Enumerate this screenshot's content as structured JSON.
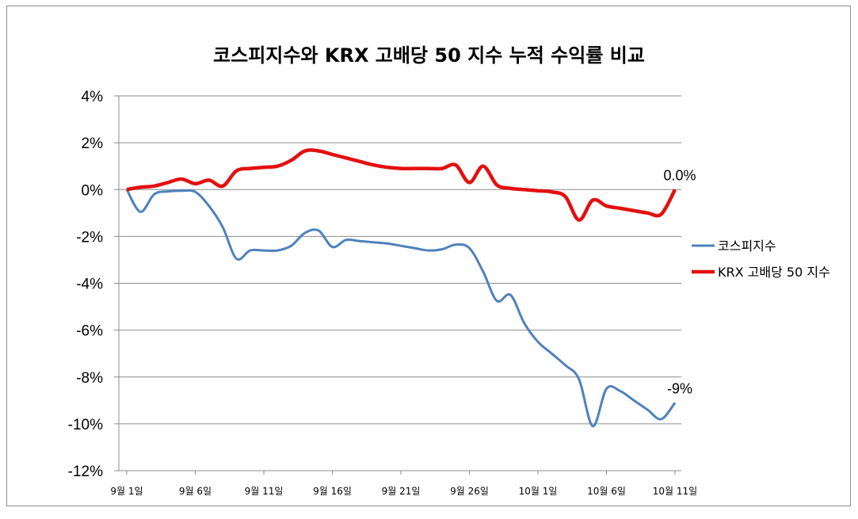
{
  "chart_data": {
    "type": "line",
    "title": "코스피지수와 KRX 고배당 50 지수 누적 수익률 비교",
    "xlabel": "",
    "ylabel": "",
    "ylim": [
      -12,
      4
    ],
    "y_ticks": [
      "4%",
      "2%",
      "0%",
      "-2%",
      "-4%",
      "-6%",
      "-8%",
      "-10%",
      "-12%"
    ],
    "x_tick_labels": [
      "9월 1일",
      "9월 6일",
      "9월 11일",
      "9월 16일",
      "9월 21일",
      "9월 26일",
      "10월 1일",
      "10월 6일",
      "10월 11일"
    ],
    "x_tick_days": [
      0,
      5,
      10,
      15,
      20,
      25,
      30,
      35,
      40
    ],
    "legend_position": "right",
    "grid": "horizontal",
    "series": [
      {
        "name": "코스피지수",
        "color": "#4f81bd",
        "end_label": "-9%",
        "points": [
          [
            0,
            0
          ],
          [
            1,
            -0.95
          ],
          [
            2,
            -0.2
          ],
          [
            3,
            -0.08
          ],
          [
            4,
            -0.05
          ],
          [
            5,
            -0.1
          ],
          [
            6,
            -0.7
          ],
          [
            7,
            -1.6
          ],
          [
            8,
            -2.95
          ],
          [
            9,
            -2.6
          ],
          [
            10,
            -2.6
          ],
          [
            11,
            -2.6
          ],
          [
            12,
            -2.4
          ],
          [
            13,
            -1.85
          ],
          [
            14,
            -1.75
          ],
          [
            15,
            -2.45
          ],
          [
            16,
            -2.15
          ],
          [
            17,
            -2.2
          ],
          [
            18,
            -2.25
          ],
          [
            19,
            -2.3
          ],
          [
            20,
            -2.4
          ],
          [
            21,
            -2.5
          ],
          [
            22,
            -2.6
          ],
          [
            23,
            -2.55
          ],
          [
            24,
            -2.35
          ],
          [
            25,
            -2.5
          ],
          [
            26,
            -3.5
          ],
          [
            27,
            -4.75
          ],
          [
            28,
            -4.5
          ],
          [
            29,
            -5.7
          ],
          [
            30,
            -6.5
          ],
          [
            31,
            -7.0
          ],
          [
            32,
            -7.5
          ],
          [
            33,
            -8.1
          ],
          [
            34,
            -10.1
          ],
          [
            35,
            -8.5
          ],
          [
            36,
            -8.6
          ],
          [
            37,
            -9.0
          ],
          [
            38,
            -9.4
          ],
          [
            39,
            -9.8
          ],
          [
            40,
            -9.1
          ]
        ]
      },
      {
        "name": "KRX 고배당 50 지수",
        "color": "#e3100f",
        "end_label": "0.0%",
        "points": [
          [
            0,
            0
          ],
          [
            1,
            0.1
          ],
          [
            2,
            0.15
          ],
          [
            3,
            0.3
          ],
          [
            4,
            0.45
          ],
          [
            5,
            0.25
          ],
          [
            6,
            0.4
          ],
          [
            7,
            0.15
          ],
          [
            8,
            0.8
          ],
          [
            9,
            0.9
          ],
          [
            10,
            0.95
          ],
          [
            11,
            1.0
          ],
          [
            12,
            1.25
          ],
          [
            13,
            1.65
          ],
          [
            14,
            1.65
          ],
          [
            15,
            1.5
          ],
          [
            16,
            1.35
          ],
          [
            17,
            1.2
          ],
          [
            18,
            1.05
          ],
          [
            19,
            0.95
          ],
          [
            20,
            0.9
          ],
          [
            21,
            0.9
          ],
          [
            22,
            0.9
          ],
          [
            23,
            0.9
          ],
          [
            24,
            1.05
          ],
          [
            25,
            0.3
          ],
          [
            26,
            1.0
          ],
          [
            27,
            0.2
          ],
          [
            28,
            0.05
          ],
          [
            29,
            0.0
          ],
          [
            30,
            -0.05
          ],
          [
            31,
            -0.1
          ],
          [
            32,
            -0.3
          ],
          [
            33,
            -1.3
          ],
          [
            34,
            -0.45
          ],
          [
            35,
            -0.7
          ],
          [
            36,
            -0.8
          ],
          [
            37,
            -0.9
          ],
          [
            38,
            -1.0
          ],
          [
            39,
            -1.05
          ],
          [
            40,
            0.0
          ]
        ]
      }
    ]
  }
}
